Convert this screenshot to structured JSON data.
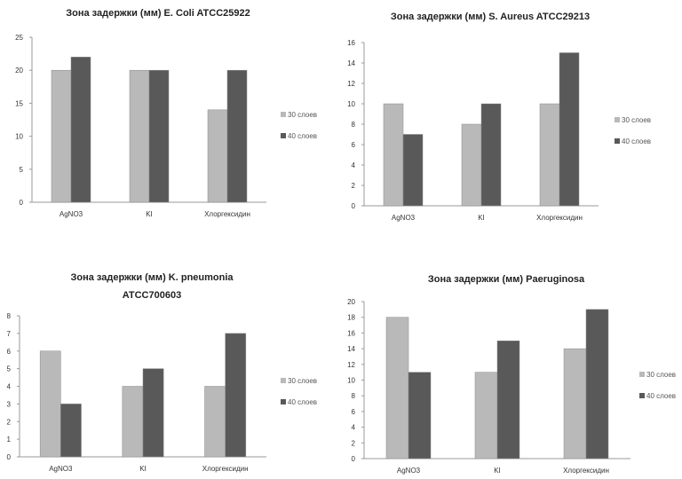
{
  "colors": {
    "s30": "#b9b9b9",
    "s40": "#595959",
    "axis": "#9a9a9a"
  },
  "chart_data": [
    {
      "type": "bar",
      "title": [
        "Зона задержки (мм) E. Coli ATCC25922"
      ],
      "categories": [
        "AgNO3",
        "KI",
        "Хлоргексидин"
      ],
      "series": [
        {
          "name": "30 слоев",
          "values": [
            20,
            20,
            14
          ]
        },
        {
          "name": "40 слоев",
          "values": [
            22,
            20,
            20
          ]
        }
      ],
      "yticks": [
        "0",
        "5",
        "10",
        "15",
        "20",
        "25"
      ],
      "ylim": [
        0,
        25
      ],
      "legend": "right"
    },
    {
      "type": "bar",
      "title": [
        "Зона задержки (мм) S. Aureus ATCC29213"
      ],
      "categories": [
        "AgNO3",
        "KI",
        "Хлоргексидин"
      ],
      "series": [
        {
          "name": "30 слоев",
          "values": [
            10,
            8,
            10
          ]
        },
        {
          "name": "40 слоев",
          "values": [
            7,
            10,
            15
          ]
        }
      ],
      "yticks": [
        "0",
        "2",
        "4",
        "6",
        "8",
        "10",
        "12",
        "14",
        "16"
      ],
      "ylim": [
        0,
        16
      ],
      "legend": "right"
    },
    {
      "type": "bar",
      "title": [
        "Зона задержки (мм) K. pneumonia",
        "ATCC700603"
      ],
      "categories": [
        "AgNO3",
        "KI",
        "Хлоргексидин"
      ],
      "series": [
        {
          "name": "30 слоев",
          "values": [
            6,
            4,
            4
          ]
        },
        {
          "name": "40 слоев",
          "values": [
            3,
            5,
            7
          ]
        }
      ],
      "yticks": [
        "0",
        "1",
        "2",
        "3",
        "4",
        "5",
        "6",
        "7",
        "8"
      ],
      "ylim": [
        0,
        8
      ],
      "legend": "right"
    },
    {
      "type": "bar",
      "title": [
        "Зона задержки (мм) Paeruginosa"
      ],
      "categories": [
        "AgNO3",
        "KI",
        "Хлоргексидин"
      ],
      "series": [
        {
          "name": "30 слоев",
          "values": [
            18,
            11,
            14
          ]
        },
        {
          "name": "40 слоев",
          "values": [
            11,
            15,
            19
          ]
        }
      ],
      "yticks": [
        "0",
        "2",
        "4",
        "6",
        "8",
        "10",
        "12",
        "14",
        "16",
        "18",
        "20"
      ],
      "ylim": [
        0,
        20
      ],
      "legend": "right"
    }
  ]
}
